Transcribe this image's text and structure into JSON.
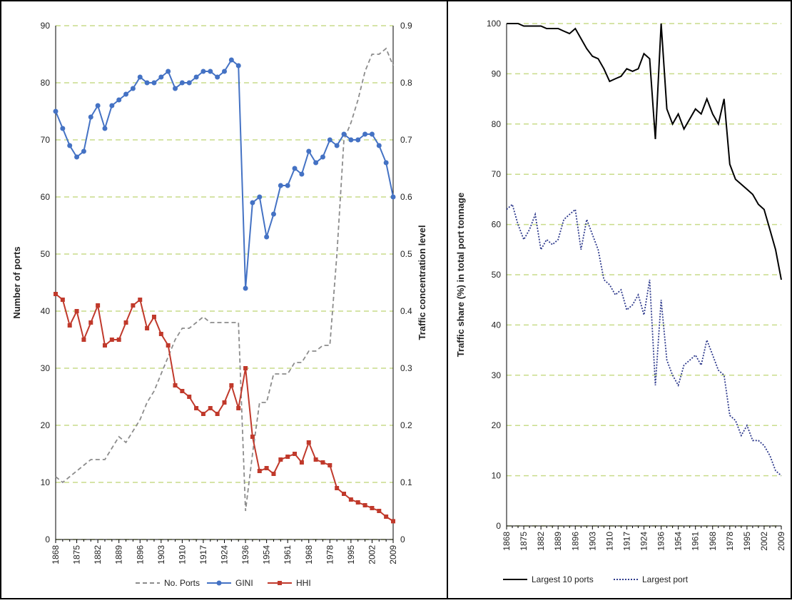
{
  "chart_data": [
    {
      "type": "line",
      "ylabel": "Number of ports",
      "y2label": "Traffic concentration level",
      "categories": [
        "1868",
        null,
        null,
        "1875",
        null,
        null,
        "1882",
        null,
        null,
        "1889",
        null,
        null,
        "1896",
        null,
        null,
        "1903",
        null,
        null,
        "1910",
        null,
        null,
        "1917",
        null,
        null,
        "1924",
        null,
        null,
        "1936",
        null,
        null,
        "1954",
        null,
        null,
        "1961",
        null,
        null,
        "1968",
        null,
        null,
        "1978",
        null,
        null,
        "1995",
        null,
        null,
        "2002",
        null,
        null,
        "2009"
      ],
      "ylim": [
        0,
        90
      ],
      "yticks": [
        0,
        10,
        20,
        30,
        40,
        50,
        60,
        70,
        80,
        90
      ],
      "y2lim": [
        0,
        0.9
      ],
      "y2ticks": [
        0,
        0.1,
        0.2,
        0.3,
        0.4,
        0.5,
        0.6,
        0.7,
        0.8,
        0.9
      ],
      "grid": true,
      "series": [
        {
          "name": "No. Ports",
          "color": "#8c8c8c",
          "dash": "6,4",
          "marker": null,
          "values": [
            11,
            10,
            11,
            12,
            13,
            14,
            14,
            14,
            16,
            18,
            17,
            19,
            21,
            24,
            26,
            29,
            32,
            35,
            37,
            37,
            38,
            39,
            38,
            38,
            38,
            38,
            38,
            5,
            15,
            24,
            24,
            29,
            29,
            29,
            31,
            31,
            33,
            33,
            34,
            34,
            50,
            70,
            73,
            77,
            82,
            85,
            85,
            86,
            83
          ]
        },
        {
          "name": "GINI",
          "color": "#4472c4",
          "dash": null,
          "marker": "circle",
          "axis": "y2",
          "values": [
            0.75,
            0.72,
            0.69,
            0.67,
            0.68,
            0.74,
            0.76,
            0.72,
            0.76,
            0.77,
            0.78,
            0.79,
            0.81,
            0.8,
            0.8,
            0.81,
            0.82,
            0.79,
            0.8,
            0.8,
            0.81,
            0.82,
            0.82,
            0.81,
            0.82,
            0.84,
            0.83,
            0.44,
            0.59,
            0.6,
            0.53,
            0.57,
            0.62,
            0.62,
            0.65,
            0.64,
            0.68,
            0.66,
            0.67,
            0.7,
            0.69,
            0.71,
            0.7,
            0.7,
            0.71,
            0.71,
            0.69,
            0.66,
            0.6
          ]
        },
        {
          "name": "HHI",
          "color": "#c0392b",
          "dash": null,
          "marker": "square",
          "axis": "y2",
          "values": [
            0.43,
            0.42,
            0.375,
            0.4,
            0.35,
            0.38,
            0.41,
            0.34,
            0.35,
            0.35,
            0.38,
            0.41,
            0.42,
            0.37,
            0.39,
            0.36,
            0.34,
            0.27,
            0.26,
            0.25,
            0.23,
            0.22,
            0.23,
            0.22,
            0.24,
            0.27,
            0.23,
            0.3,
            0.18,
            0.12,
            0.125,
            0.115,
            0.14,
            0.145,
            0.15,
            0.135,
            0.17,
            0.14,
            0.135,
            0.13,
            0.09,
            0.08,
            0.07,
            0.065,
            0.06,
            0.055,
            0.05,
            0.04,
            0.032
          ]
        }
      ]
    },
    {
      "type": "line",
      "ylabel": "Traffic share (%) in total port tonnage",
      "categories": [
        "1868",
        null,
        null,
        "1875",
        null,
        null,
        "1882",
        null,
        null,
        "1889",
        null,
        null,
        "1896",
        null,
        null,
        "1903",
        null,
        null,
        "1910",
        null,
        null,
        "1917",
        null,
        null,
        "1924",
        null,
        null,
        "1936",
        null,
        null,
        "1954",
        null,
        null,
        "1961",
        null,
        null,
        "1968",
        null,
        null,
        "1978",
        null,
        null,
        "1995",
        null,
        null,
        "2002",
        null,
        null,
        "2009"
      ],
      "ylim": [
        0,
        100
      ],
      "yticks": [
        0,
        10,
        20,
        30,
        40,
        50,
        60,
        70,
        80,
        90,
        100
      ],
      "grid": true,
      "series": [
        {
          "name": "Largest 10 ports",
          "color": "#000000",
          "dash": null,
          "marker": null,
          "values": [
            100,
            100,
            100,
            99.5,
            99.5,
            99.5,
            99.5,
            99,
            99,
            99,
            98.5,
            98,
            99,
            97,
            95,
            93.5,
            93,
            91,
            88.5,
            89,
            89.5,
            91,
            90.5,
            91,
            94,
            93,
            77,
            100,
            83,
            80,
            82,
            79,
            81,
            83,
            82,
            85,
            82,
            80,
            85,
            72,
            69,
            68,
            67,
            66,
            64,
            63,
            59,
            55,
            49
          ]
        },
        {
          "name": "Largest port",
          "color": "#2e3a8c",
          "dash": "2,2",
          "marker": null,
          "values": [
            63,
            64,
            60,
            57,
            59,
            62,
            55,
            57,
            56,
            57,
            61,
            62,
            63,
            55,
            61,
            58,
            55,
            49,
            48,
            46,
            47,
            43,
            44,
            46,
            42,
            49,
            28,
            45,
            33,
            30,
            28,
            32,
            33,
            34,
            32,
            37,
            34,
            31,
            30,
            22,
            21,
            18,
            20,
            17,
            17,
            16,
            14,
            11,
            10
          ]
        }
      ]
    }
  ]
}
